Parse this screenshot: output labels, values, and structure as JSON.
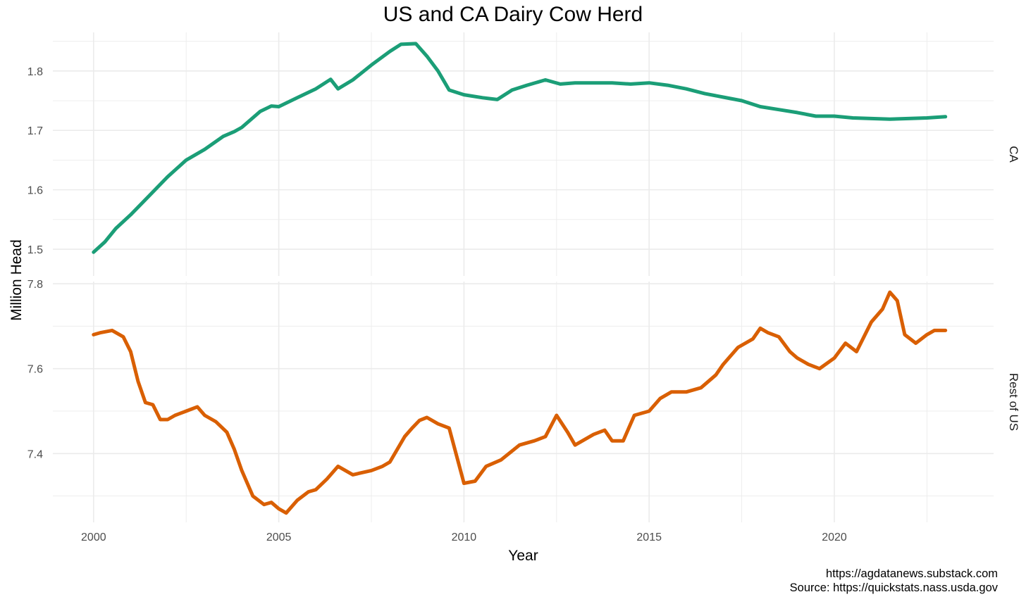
{
  "chart_data": {
    "type": "line",
    "title": "US and CA Dairy Cow Herd",
    "xlabel": "Year",
    "ylabel": "Million Head",
    "xlim": [
      1998.9,
      2024.3
    ],
    "x_ticks": [
      2000,
      2005,
      2010,
      2015,
      2020
    ],
    "grid": true,
    "legend": "none",
    "caption": [
      "https://agdatanews.substack.com",
      "Source: https://quickstats.nass.usda.gov"
    ],
    "panels": [
      {
        "name": "CA",
        "color": "#1B9E77",
        "ylim": [
          1.455,
          1.865
        ],
        "y_ticks": [
          1.5,
          1.6,
          1.7,
          1.8
        ],
        "y_tick_labels": [
          "1.5",
          "1.6",
          "1.7",
          "1.8"
        ],
        "series": [
          {
            "x": [
              2000.0,
              2000.3,
              2000.6,
              2001.0,
              2001.5,
              2002.0,
              2002.5,
              2003.0,
              2003.5,
              2003.8,
              2004.0,
              2004.5,
              2004.8,
              2005.0,
              2005.5,
              2006.0,
              2006.4,
              2006.6,
              2007.0,
              2007.5,
              2008.0,
              2008.3,
              2008.7,
              2009.0,
              2009.3,
              2009.6,
              2010.0,
              2010.5,
              2010.9,
              2011.3,
              2011.7,
              2012.2,
              2012.6,
              2013.0,
              2013.5,
              2014.0,
              2014.5,
              2015.0,
              2015.5,
              2016.0,
              2016.5,
              2017.0,
              2017.5,
              2018.0,
              2018.5,
              2019.0,
              2019.5,
              2020.0,
              2020.5,
              2021.0,
              2021.5,
              2022.0,
              2022.5,
              2023.0
            ],
            "y": [
              1.495,
              1.512,
              1.535,
              1.558,
              1.59,
              1.622,
              1.65,
              1.668,
              1.69,
              1.698,
              1.705,
              1.732,
              1.741,
              1.74,
              1.755,
              1.77,
              1.786,
              1.77,
              1.785,
              1.81,
              1.833,
              1.845,
              1.846,
              1.825,
              1.8,
              1.768,
              1.76,
              1.755,
              1.752,
              1.768,
              1.776,
              1.785,
              1.778,
              1.78,
              1.78,
              1.78,
              1.778,
              1.78,
              1.776,
              1.77,
              1.762,
              1.756,
              1.75,
              1.74,
              1.735,
              1.73,
              1.724,
              1.724,
              1.721,
              1.72,
              1.719,
              1.72,
              1.721,
              1.723
            ]
          }
        ]
      },
      {
        "name": "Rest of US",
        "color": "#D95F02",
        "ylim": [
          7.238,
          7.805
        ],
        "y_ticks": [
          7.4,
          7.6,
          7.8
        ],
        "y_tick_labels": [
          "7.4",
          "7.6",
          "7.8"
        ],
        "series": [
          {
            "x": [
              2000.0,
              2000.2,
              2000.5,
              2000.8,
              2001.0,
              2001.2,
              2001.4,
              2001.6,
              2001.8,
              2002.0,
              2002.2,
              2002.5,
              2002.8,
              2003.0,
              2003.3,
              2003.6,
              2003.8,
              2004.0,
              2004.3,
              2004.6,
              2004.8,
              2005.0,
              2005.2,
              2005.5,
              2005.8,
              2006.0,
              2006.3,
              2006.6,
              2007.0,
              2007.5,
              2007.8,
              2008.0,
              2008.4,
              2008.6,
              2008.8,
              2009.0,
              2009.3,
              2009.6,
              2010.0,
              2010.3,
              2010.6,
              2011.0,
              2011.5,
              2011.9,
              2012.2,
              2012.5,
              2012.8,
              2013.0,
              2013.5,
              2013.8,
              2014.0,
              2014.3,
              2014.6,
              2015.0,
              2015.3,
              2015.6,
              2016.0,
              2016.4,
              2016.8,
              2017.0,
              2017.4,
              2017.8,
              2018.0,
              2018.2,
              2018.5,
              2018.8,
              2019.0,
              2019.3,
              2019.6,
              2020.0,
              2020.3,
              2020.6,
              2021.0,
              2021.3,
              2021.5,
              2021.7,
              2021.9,
              2022.2,
              2022.5,
              2022.7,
              2023.0
            ],
            "y": [
              7.68,
              7.685,
              7.69,
              7.675,
              7.64,
              7.57,
              7.52,
              7.515,
              7.48,
              7.48,
              7.49,
              7.5,
              7.51,
              7.49,
              7.475,
              7.45,
              7.41,
              7.36,
              7.3,
              7.28,
              7.285,
              7.27,
              7.26,
              7.29,
              7.31,
              7.315,
              7.34,
              7.37,
              7.35,
              7.36,
              7.37,
              7.38,
              7.44,
              7.46,
              7.478,
              7.485,
              7.47,
              7.46,
              7.33,
              7.335,
              7.37,
              7.385,
              7.42,
              7.43,
              7.44,
              7.49,
              7.45,
              7.42,
              7.445,
              7.455,
              7.43,
              7.43,
              7.49,
              7.5,
              7.53,
              7.545,
              7.545,
              7.555,
              7.585,
              7.61,
              7.65,
              7.67,
              7.695,
              7.685,
              7.675,
              7.64,
              7.625,
              7.61,
              7.6,
              7.625,
              7.66,
              7.64,
              7.71,
              7.74,
              7.78,
              7.76,
              7.68,
              7.66,
              7.68,
              7.69,
              7.69
            ]
          }
        ]
      }
    ]
  }
}
